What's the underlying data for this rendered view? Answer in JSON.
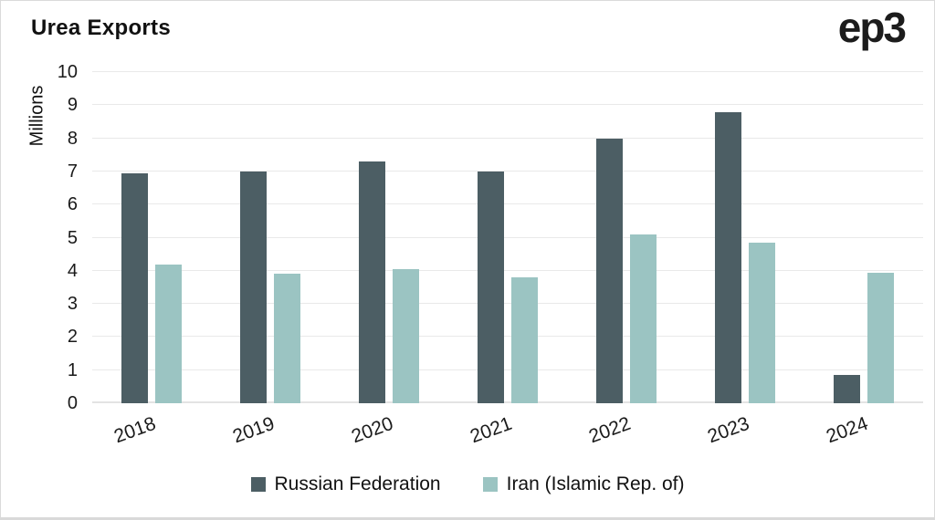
{
  "header": {
    "title": "Urea Exports",
    "logo": "ep3"
  },
  "chart_data": {
    "type": "bar",
    "title": "Urea Exports",
    "ylabel": "Millions",
    "xlabel": "",
    "ylim": [
      0,
      10
    ],
    "yticks": [
      0,
      1,
      2,
      3,
      4,
      5,
      6,
      7,
      8,
      9,
      10
    ],
    "grid": true,
    "legend_position": "bottom",
    "categories": [
      "2018",
      "2019",
      "2020",
      "2021",
      "2022",
      "2023",
      "2024"
    ],
    "series": [
      {
        "name": "Russian Federation",
        "color": "#4c5e64",
        "values": [
          6.95,
          7.0,
          7.3,
          7.0,
          8.0,
          8.8,
          0.85
        ]
      },
      {
        "name": "Iran (Islamic Rep. of)",
        "color": "#9bc4c2",
        "values": [
          4.2,
          3.9,
          4.05,
          3.8,
          5.1,
          4.85,
          3.95
        ]
      }
    ]
  },
  "colors": {
    "series_dark": "#4c5e64",
    "series_light": "#9bc4c2",
    "gridline": "#e9e9e9",
    "text": "#1a1a1a",
    "page_border": "#d9d9d9"
  }
}
